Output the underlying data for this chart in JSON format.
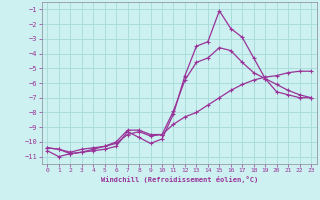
{
  "title": "",
  "xlabel": "Windchill (Refroidissement éolien,°C)",
  "xlim": [
    -0.5,
    23.5
  ],
  "ylim": [
    -11.5,
    -0.5
  ],
  "yticks": [
    -11,
    -10,
    -9,
    -8,
    -7,
    -6,
    -5,
    -4,
    -3,
    -2,
    -1
  ],
  "xticks": [
    0,
    1,
    2,
    3,
    4,
    5,
    6,
    7,
    8,
    9,
    10,
    11,
    12,
    13,
    14,
    15,
    16,
    17,
    18,
    19,
    20,
    21,
    22,
    23
  ],
  "bg_color": "#cdf0f0",
  "grid_color": "#aadddd",
  "line_color": "#993399",
  "line1_y": [
    -10.4,
    -10.5,
    -10.8,
    -10.7,
    -10.6,
    -10.5,
    -10.3,
    -9.3,
    -9.7,
    -10.1,
    -9.8,
    -8.1,
    -5.5,
    -3.5,
    -3.2,
    -1.1,
    -2.3,
    -2.9,
    -4.3,
    -5.7,
    -6.1,
    -6.5,
    -6.8,
    -7.0
  ],
  "line2_y": [
    -10.6,
    -11.0,
    -10.8,
    -10.7,
    -10.5,
    -10.3,
    -10.1,
    -9.5,
    -9.3,
    -9.6,
    -9.5,
    -8.8,
    -8.3,
    -8.0,
    -7.5,
    -7.0,
    -6.5,
    -6.1,
    -5.8,
    -5.6,
    -5.5,
    -5.3,
    -5.2,
    -5.2
  ],
  "line3_y": [
    -10.4,
    -10.5,
    -10.7,
    -10.5,
    -10.4,
    -10.3,
    -10.0,
    -9.2,
    -9.2,
    -9.5,
    -9.5,
    -7.9,
    -5.8,
    -4.6,
    -4.3,
    -3.6,
    -3.8,
    -4.6,
    -5.3,
    -5.7,
    -6.6,
    -6.8,
    -7.0,
    -7.0
  ]
}
